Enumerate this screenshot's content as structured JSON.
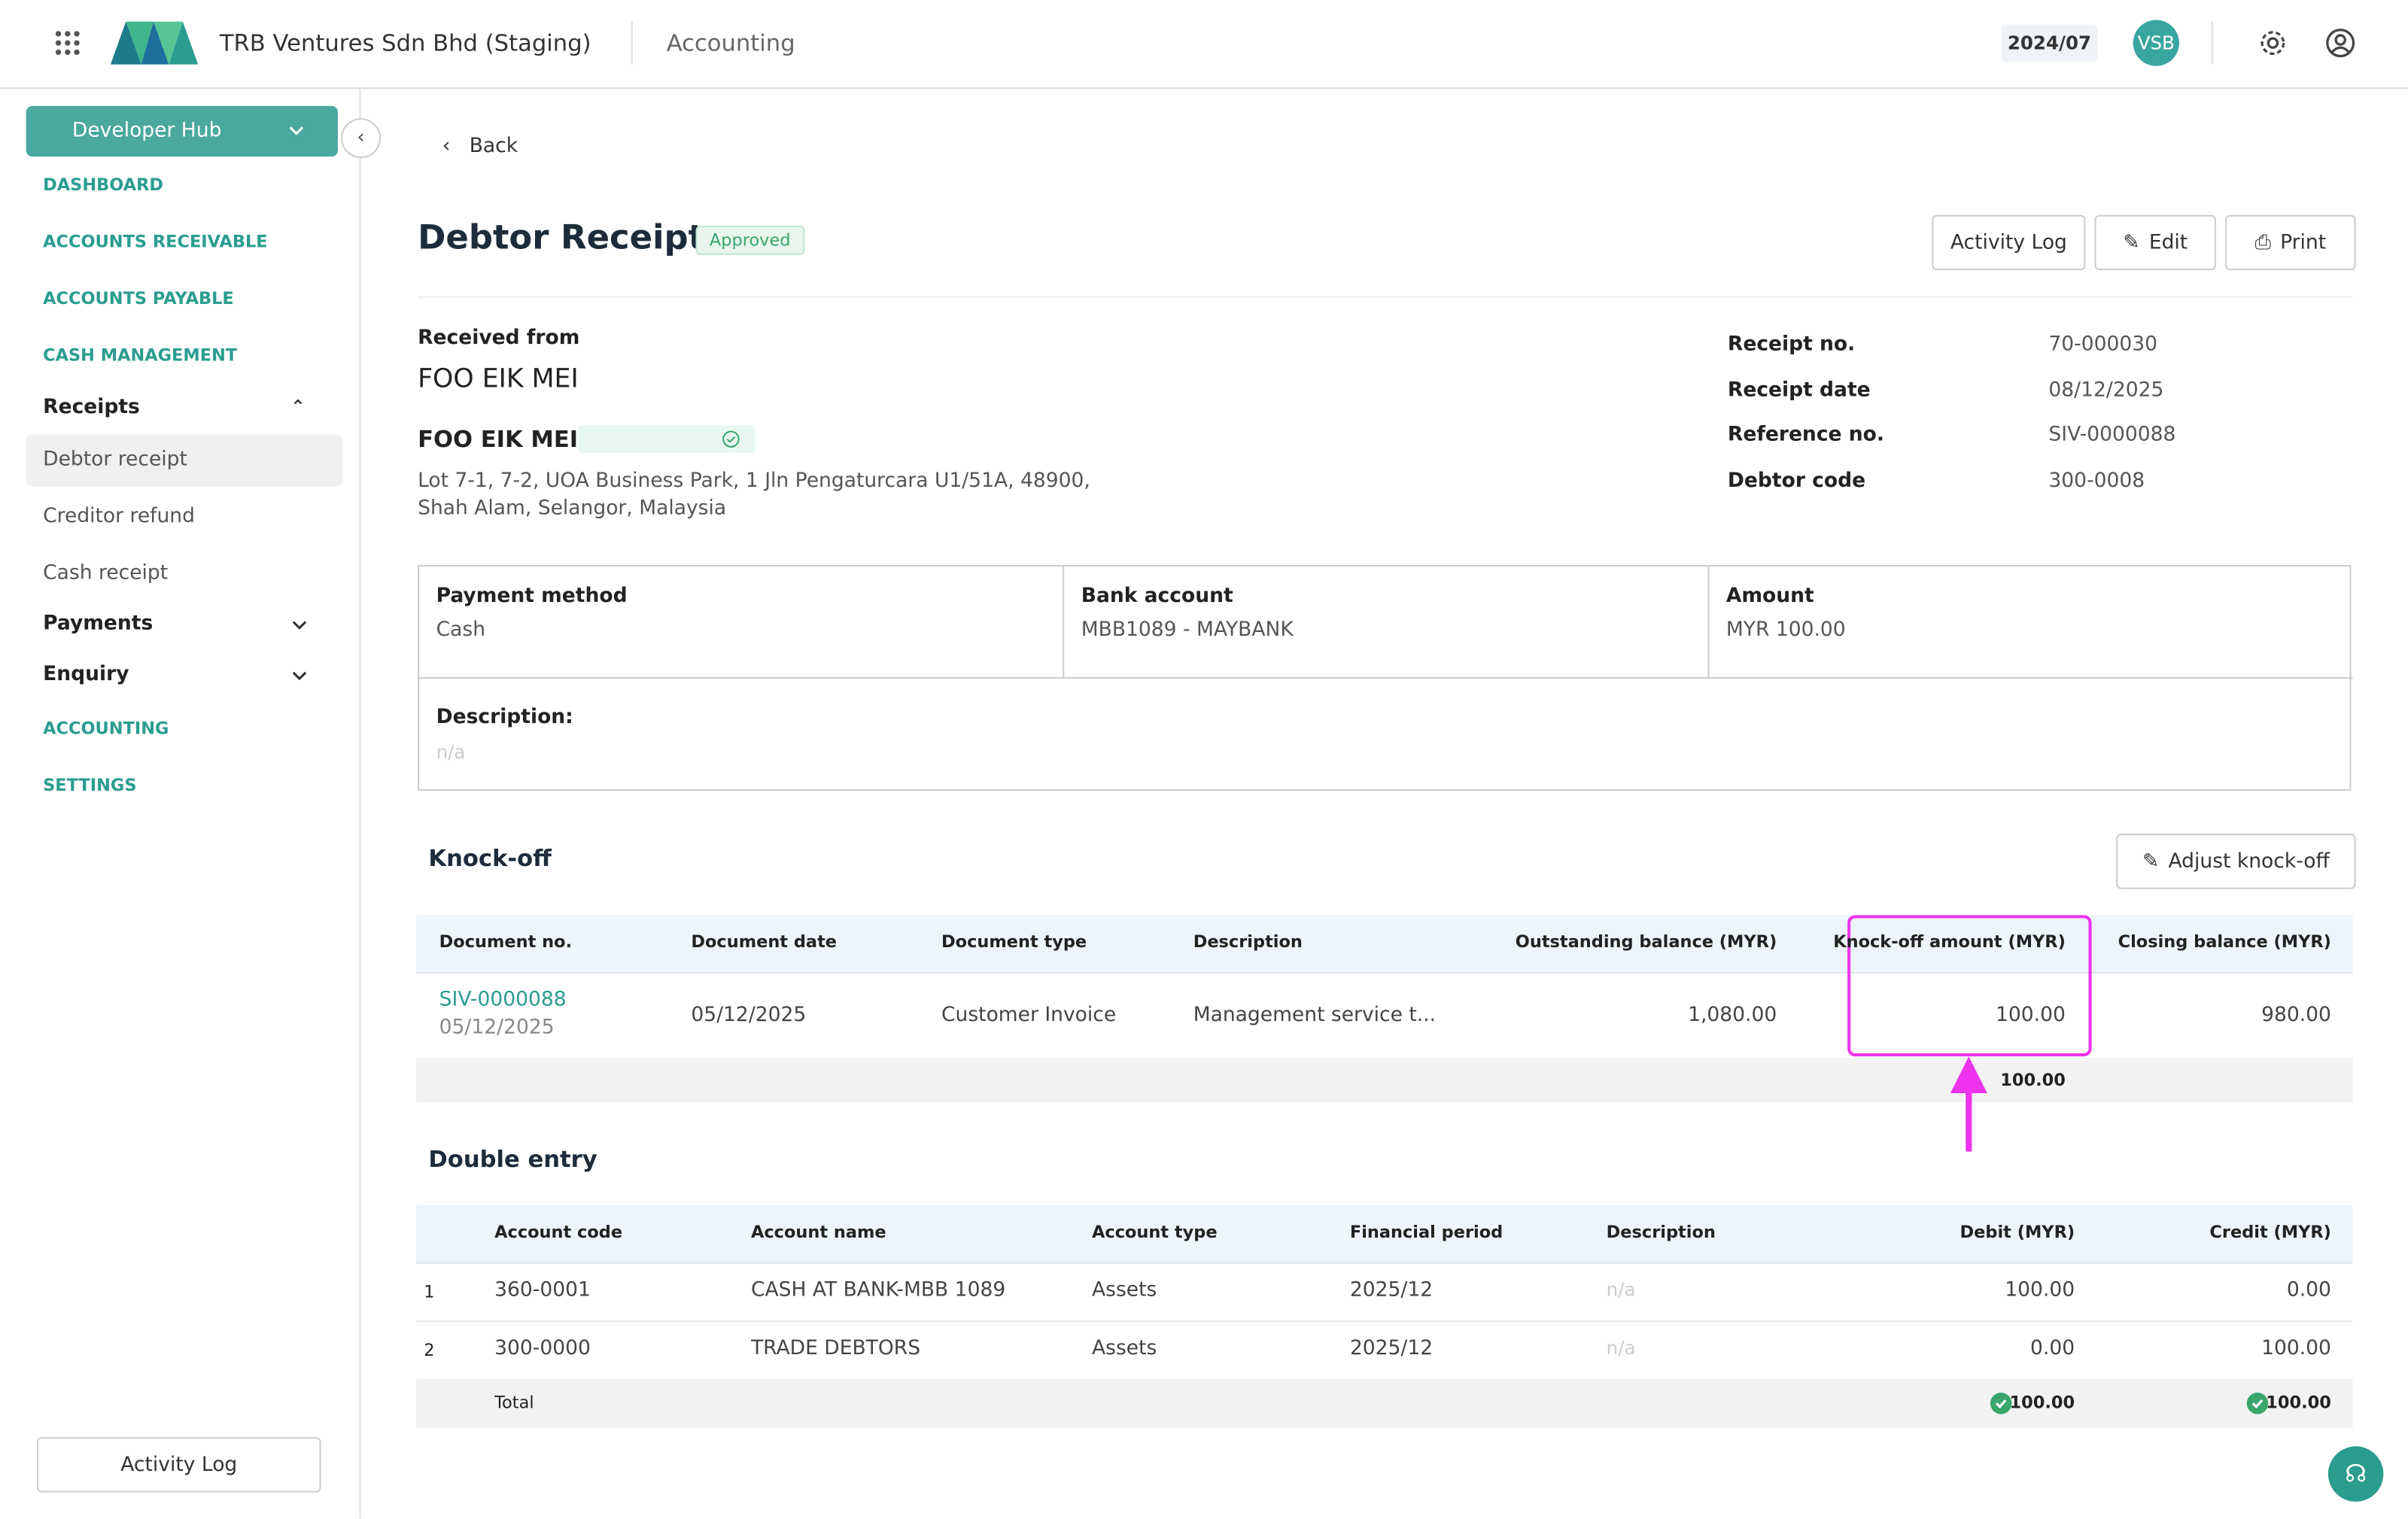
{
  "header": {
    "company": "TRB Ventures Sdn Bhd (Staging)",
    "module": "Accounting",
    "period": "2024/07",
    "avatar": "VSB"
  },
  "sidebar": {
    "hub": "Developer Hub",
    "items": [
      "DASHBOARD",
      "ACCOUNTS RECEIVABLE",
      "ACCOUNTS PAYABLE",
      "CASH MANAGEMENT"
    ],
    "receipts": {
      "title": "Receipts",
      "items": [
        "Debtor receipt",
        "Creditor refund",
        "Cash receipt"
      ]
    },
    "groups": [
      "Payments",
      "Enquiry"
    ],
    "bottom_items": [
      "ACCOUNTING",
      "SETTINGS"
    ],
    "activity_log": "Activity Log"
  },
  "page": {
    "back": "Back",
    "title": "Debtor Receipt",
    "status": "Approved",
    "buttons": [
      "Activity Log",
      "Edit",
      "Print"
    ],
    "received_from_label": "Received from",
    "received_from": "FOO EIK MEI",
    "customer_name": "FOO EIK MEI",
    "address": [
      "Lot 7-1, 7-2, UOA Business Park, 1 Jln Pengaturcara U1/51A, 48900,",
      "Shah Alam, Selangor, Malaysia"
    ],
    "meta": [
      {
        "label": "Receipt no.",
        "value": "70-000030"
      },
      {
        "label": "Receipt date",
        "value": "08/12/2025"
      },
      {
        "label": "Reference no.",
        "value": "SIV-0000088"
      },
      {
        "label": "Debtor code",
        "value": "300-0008"
      }
    ],
    "payment": [
      {
        "label": "Payment method",
        "value": "Cash"
      },
      {
        "label": "Bank account",
        "value": "MBB1089 - MAYBANK"
      },
      {
        "label": "Amount",
        "value": "MYR 100.00"
      }
    ],
    "description": {
      "label": "Description:",
      "value": "n/a"
    }
  },
  "knockoff": {
    "title": "Knock-off",
    "adjust": "Adjust knock-off",
    "columns": [
      "Document no.",
      "Document date",
      "Document type",
      "Description",
      "Outstanding balance (MYR)",
      "Knock-off amount (MYR)",
      "Closing balance (MYR)"
    ],
    "rows": [
      {
        "doc_no": "SIV-0000088",
        "doc_sub": "05/12/2025",
        "cells": [
          "05/12/2025",
          "Customer Invoice",
          "Management service t...",
          "1,080.00",
          "100.00",
          "980.00"
        ]
      }
    ],
    "total": "100.00"
  },
  "double_entry": {
    "title": "Double entry",
    "columns": [
      "Account code",
      "Account name",
      "Account type",
      "Financial period",
      "Description",
      "Debit (MYR)",
      "Credit (MYR)"
    ],
    "rows": [
      [
        "1",
        "360-0001",
        "CASH AT BANK-MBB 1089",
        "Assets",
        "2025/12",
        "n/a",
        "100.00",
        "0.00"
      ],
      [
        "2",
        "300-0000",
        "TRADE DEBTORS",
        "Assets",
        "2025/12",
        "n/a",
        "0.00",
        "100.00"
      ]
    ],
    "total_label": "Total",
    "total_debit": "100.00",
    "total_credit": "100.00"
  }
}
